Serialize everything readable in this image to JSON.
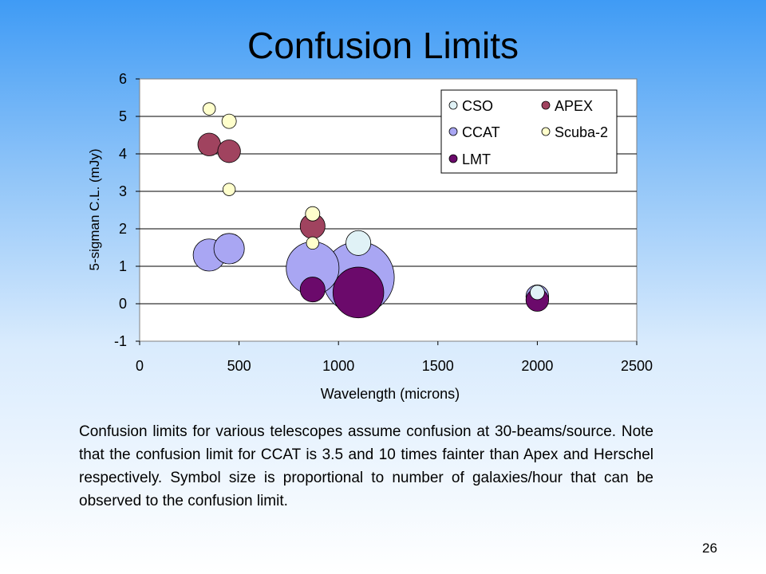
{
  "slide": {
    "title": "Confusion Limits",
    "caption": "Confusion limits for various telescopes assume confusion at 30-beams/source.  Note that the confusion limit for CCAT is 3.5 and 10 times fainter than Apex and Herschel respectively.  Symbol size is proportional to number of galaxies/hour that can be observed to the confusion limit.",
    "number": "26"
  },
  "chart_data": {
    "type": "scatter",
    "title": "",
    "xlabel": "Wavelength (microns)",
    "ylabel": "5-sigman C.L. (mJy)",
    "xlim": [
      0,
      2500
    ],
    "ylim": [
      -1,
      6
    ],
    "xticks": [
      0,
      500,
      1000,
      1500,
      2000,
      2500
    ],
    "yticks": [
      -1,
      0,
      1,
      2,
      3,
      4,
      5,
      6
    ],
    "grid": "horizontal",
    "legend_position": "top-right",
    "bubble_size_meaning": "galaxies/hour observable to the confusion limit (relative)",
    "series": [
      {
        "name": "CSO",
        "color": "#e0f2f6",
        "points": [
          {
            "x": 1100,
            "y": 1.62,
            "size": 0.06
          },
          {
            "x": 2000,
            "y": 0.3,
            "size": 0.02
          }
        ]
      },
      {
        "name": "APEX",
        "color": "#a0435f",
        "points": [
          {
            "x": 350,
            "y": 4.25,
            "size": 0.05
          },
          {
            "x": 450,
            "y": 4.07,
            "size": 0.05
          },
          {
            "x": 870,
            "y": 2.07,
            "size": 0.06
          }
        ]
      },
      {
        "name": "CCAT",
        "color": "#a9a6f3",
        "points": [
          {
            "x": 350,
            "y": 1.3,
            "size": 0.1
          },
          {
            "x": 450,
            "y": 1.47,
            "size": 0.09
          },
          {
            "x": 870,
            "y": 0.95,
            "size": 0.27
          },
          {
            "x": 1100,
            "y": 0.7,
            "size": 0.5
          },
          {
            "x": 2000,
            "y": 0.2,
            "size": 0.05
          }
        ]
      },
      {
        "name": "Scuba-2",
        "color": "#ffffcc",
        "points": [
          {
            "x": 350,
            "y": 5.2,
            "size": 0.015
          },
          {
            "x": 450,
            "y": 4.87,
            "size": 0.02
          },
          {
            "x": 450,
            "y": 3.05,
            "size": 0.015
          },
          {
            "x": 870,
            "y": 2.4,
            "size": 0.02
          },
          {
            "x": 870,
            "y": 1.62,
            "size": 0.015
          }
        ]
      },
      {
        "name": "LMT",
        "color": "#6b0a6b",
        "points": [
          {
            "x": 870,
            "y": 0.38,
            "size": 0.06
          },
          {
            "x": 1100,
            "y": 0.3,
            "size": 0.25
          },
          {
            "x": 2000,
            "y": 0.1,
            "size": 0.05
          }
        ]
      }
    ]
  }
}
